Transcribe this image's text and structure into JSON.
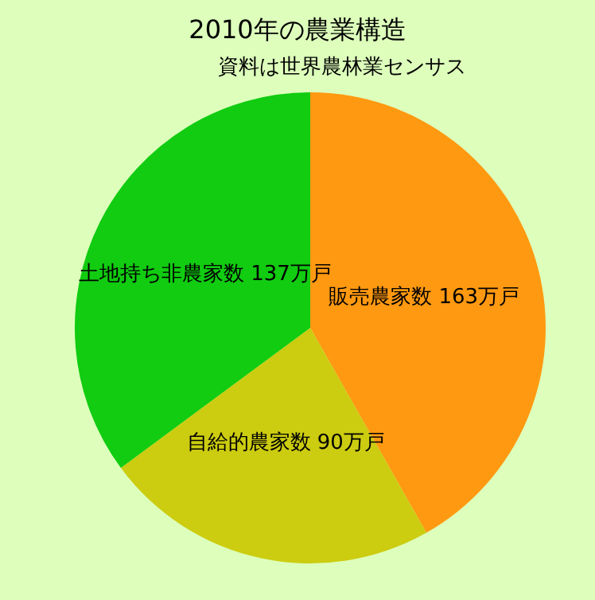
{
  "chart_data": {
    "type": "pie",
    "title": "2010年の農業構造",
    "subtitle": "資料は世界農林業センサス",
    "categories": [
      "販売農家数",
      "自給的農家数",
      "土地持ち非農家数"
    ],
    "values": [
      163,
      90,
      137
    ],
    "value_labels": [
      "163万戸",
      "90万戸",
      "137万戸"
    ],
    "colors": [
      "#ff9911",
      "#cccc11",
      "#11cc11"
    ],
    "legend": false
  }
}
